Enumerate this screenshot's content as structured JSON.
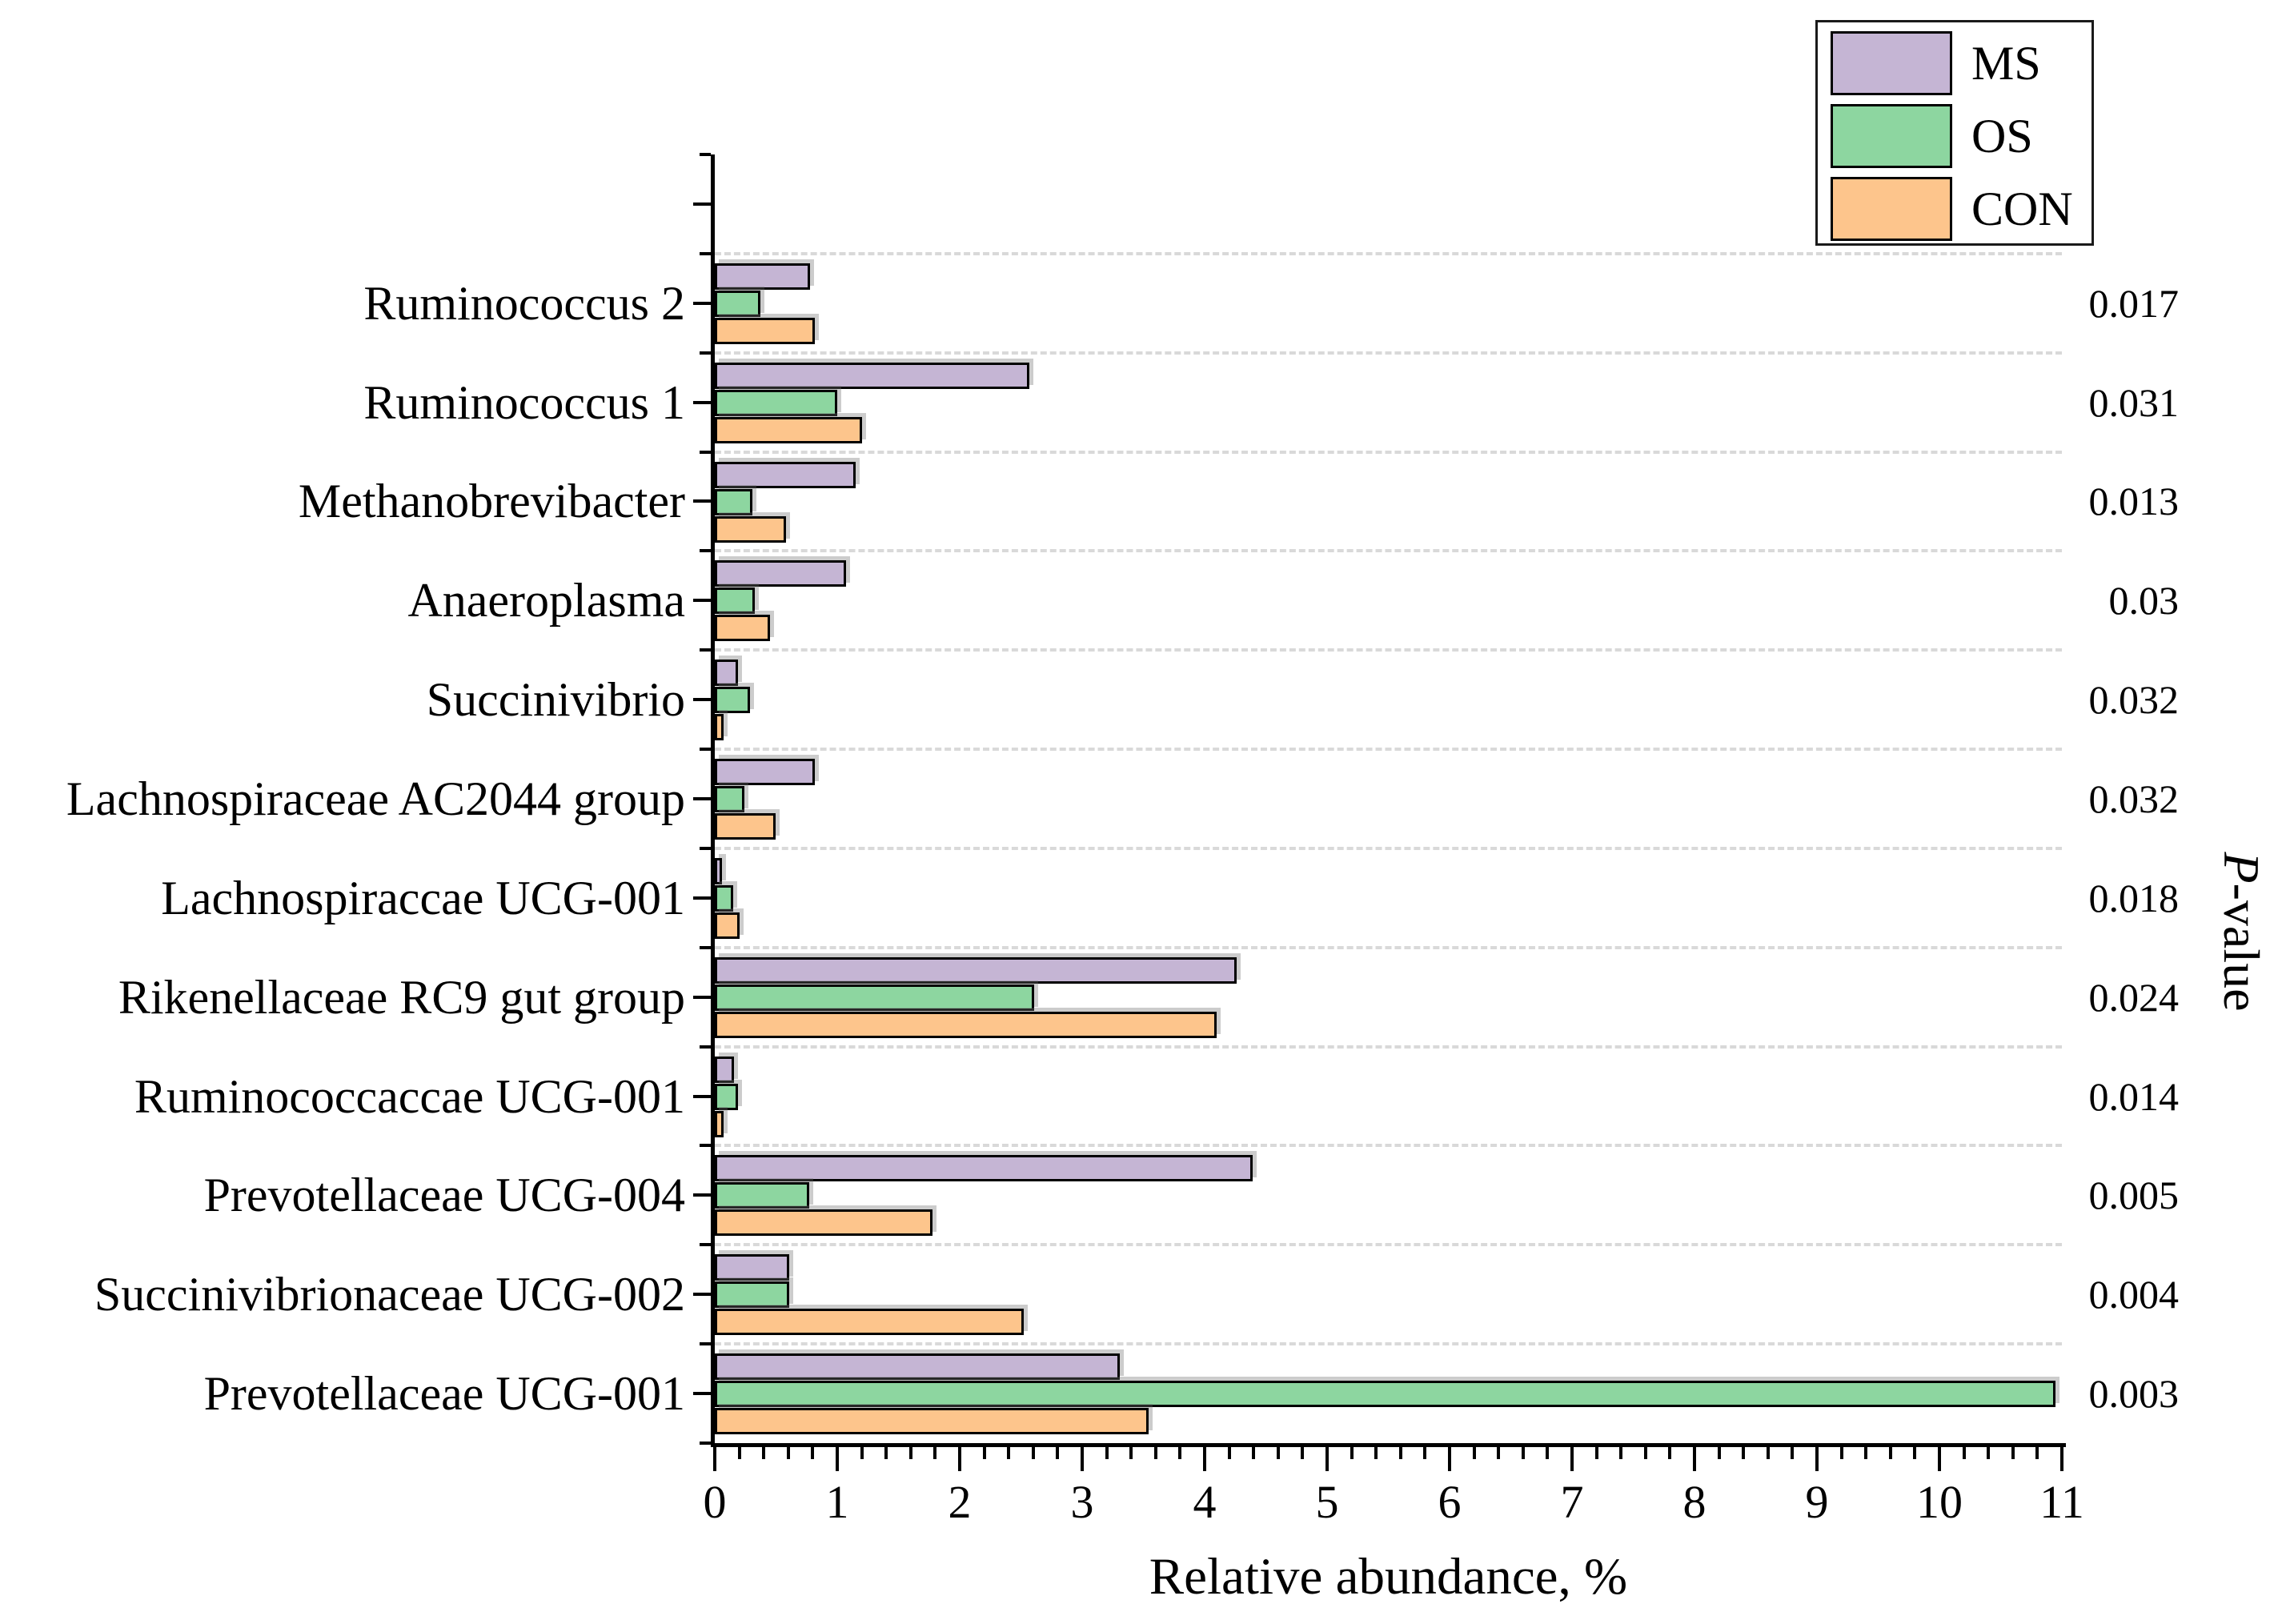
{
  "legend": {
    "items": [
      {
        "label": "MS",
        "color": "#c5b5d4"
      },
      {
        "label": "OS",
        "color": "#8dd6a0"
      },
      {
        "label": "CON",
        "color": "#fdc58c"
      }
    ]
  },
  "right_axis": {
    "label": "P-value",
    "label_italic": "P",
    "label_rest": "-value"
  },
  "chart_data": {
    "type": "bar",
    "orientation": "horizontal",
    "title": "",
    "xlabel": "Relative abundance, %",
    "ylabel": "",
    "right_axis_label": "P-value",
    "xlim": [
      0,
      11
    ],
    "x_ticks": [
      0,
      1,
      2,
      3,
      4,
      5,
      6,
      7,
      8,
      9,
      10,
      11
    ],
    "x_minor_tick_step": 0.2,
    "grid": "dashed horizontal separators between category groups",
    "legend_position": "top-right",
    "bar_order_top_to_bottom": [
      "MS",
      "OS",
      "CON"
    ],
    "categories": [
      "Ruminococcus 2",
      "Ruminococcus 1",
      "Methanobrevibacter",
      "Anaeroplasma",
      "Succinivibrio",
      "Lachnospiraceae AC2044 group",
      "Lachnospiraccae UCG-001",
      "Rikenellaceae RC9 gut group",
      "Ruminococcaccae UCG-001",
      "Prevotellaceae UCG-004",
      "Succinivibrionaceae UCG-002",
      "Prevotellaceae UCG-001"
    ],
    "series": [
      {
        "name": "MS",
        "color": "#c5b5d4",
        "values": [
          0.76,
          2.55,
          1.13,
          1.05,
          0.17,
          0.8,
          0.04,
          4.24,
          0.14,
          4.37,
          0.59,
          3.29
        ]
      },
      {
        "name": "OS",
        "color": "#8dd6a0",
        "values": [
          0.35,
          0.98,
          0.29,
          0.31,
          0.27,
          0.22,
          0.13,
          2.59,
          0.17,
          0.75,
          0.59,
          10.93
        ]
      },
      {
        "name": "CON",
        "color": "#fdc58c",
        "values": [
          0.8,
          1.18,
          0.56,
          0.43,
          0.05,
          0.48,
          0.18,
          4.08,
          0.05,
          1.76,
          2.5,
          3.52
        ]
      }
    ],
    "p_values": [
      "0.017",
      "0.031",
      "0.013",
      "0.03",
      "0.032",
      "0.032",
      "0.018",
      "0.024",
      "0.014",
      "0.005",
      "0.004",
      "0.003"
    ]
  }
}
